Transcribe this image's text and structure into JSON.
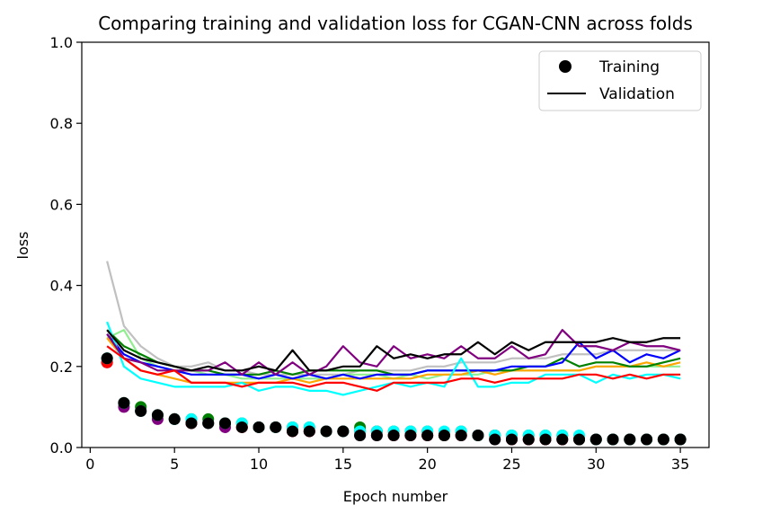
{
  "chart_data": {
    "type": "line",
    "title": "Comparing training and validation loss for CGAN-CNN across folds",
    "xlabel": "Epoch number",
    "ylabel": "loss",
    "xlim": [
      -0.5,
      36.7
    ],
    "ylim": [
      0,
      1.0
    ],
    "xticks": [
      "0",
      "5",
      "10",
      "15",
      "20",
      "25",
      "30",
      "35"
    ],
    "yticks": [
      "0.0",
      "0.2",
      "0.4",
      "0.6",
      "0.8",
      "1.0"
    ],
    "legend": {
      "placement": "top-right",
      "entries": [
        {
          "label": "Training",
          "marker": "dot",
          "color": "#000000"
        },
        {
          "label": "Validation",
          "marker": "line",
          "color": "#000000"
        }
      ]
    },
    "x": [
      1,
      2,
      3,
      4,
      5,
      6,
      7,
      8,
      9,
      10,
      11,
      12,
      13,
      14,
      15,
      16,
      17,
      18,
      19,
      20,
      21,
      22,
      23,
      24,
      25,
      26,
      27,
      28,
      29,
      30,
      31,
      32,
      33,
      34,
      35
    ],
    "validation_series": [
      {
        "color": "#c0c0c0",
        "values": [
          0.46,
          0.3,
          0.25,
          0.22,
          0.2,
          0.2,
          0.21,
          0.19,
          0.19,
          0.18,
          0.18,
          0.18,
          0.18,
          0.18,
          0.18,
          0.19,
          0.19,
          0.19,
          0.19,
          0.2,
          0.2,
          0.21,
          0.21,
          0.21,
          0.22,
          0.22,
          0.22,
          0.23,
          0.23,
          0.23,
          0.24,
          0.24,
          0.24,
          0.24,
          0.24
        ]
      },
      {
        "color": "#90ee90",
        "values": [
          0.27,
          0.29,
          0.22,
          0.2,
          0.19,
          0.19,
          0.18,
          0.18,
          0.17,
          0.17,
          0.17,
          0.17,
          0.17,
          0.17,
          0.18,
          0.18,
          0.18,
          0.17,
          0.18,
          0.17,
          0.18,
          0.18,
          0.18,
          0.19,
          0.19,
          0.19,
          0.19,
          0.19,
          0.19,
          0.2,
          0.2,
          0.2,
          0.2,
          0.2,
          0.2
        ]
      },
      {
        "color": "#ffa500",
        "values": [
          0.27,
          0.22,
          0.19,
          0.18,
          0.17,
          0.16,
          0.16,
          0.16,
          0.16,
          0.16,
          0.16,
          0.17,
          0.16,
          0.17,
          0.17,
          0.17,
          0.17,
          0.17,
          0.17,
          0.18,
          0.18,
          0.18,
          0.19,
          0.18,
          0.19,
          0.19,
          0.19,
          0.19,
          0.19,
          0.2,
          0.2,
          0.2,
          0.21,
          0.2,
          0.21
        ]
      },
      {
        "color": "#008000",
        "values": [
          0.29,
          0.25,
          0.23,
          0.21,
          0.2,
          0.19,
          0.19,
          0.18,
          0.18,
          0.18,
          0.19,
          0.18,
          0.19,
          0.19,
          0.19,
          0.19,
          0.19,
          0.18,
          0.18,
          0.19,
          0.19,
          0.19,
          0.19,
          0.19,
          0.19,
          0.2,
          0.2,
          0.22,
          0.2,
          0.21,
          0.21,
          0.2,
          0.2,
          0.21,
          0.22
        ]
      },
      {
        "color": "#0000ff",
        "values": [
          0.28,
          0.23,
          0.21,
          0.2,
          0.19,
          0.18,
          0.18,
          0.18,
          0.18,
          0.17,
          0.18,
          0.17,
          0.18,
          0.17,
          0.18,
          0.17,
          0.18,
          0.18,
          0.18,
          0.19,
          0.19,
          0.19,
          0.19,
          0.19,
          0.2,
          0.2,
          0.2,
          0.21,
          0.26,
          0.22,
          0.24,
          0.21,
          0.23,
          0.22,
          0.24
        ]
      },
      {
        "color": "#00ffff",
        "values": [
          0.31,
          0.2,
          0.17,
          0.16,
          0.15,
          0.15,
          0.15,
          0.15,
          0.16,
          0.14,
          0.15,
          0.15,
          0.14,
          0.14,
          0.13,
          0.14,
          0.15,
          0.16,
          0.15,
          0.16,
          0.15,
          0.22,
          0.15,
          0.15,
          0.16,
          0.16,
          0.18,
          0.18,
          0.18,
          0.16,
          0.18,
          0.17,
          0.18,
          0.18,
          0.17
        ]
      },
      {
        "color": "#800080",
        "values": [
          0.28,
          0.22,
          0.21,
          0.19,
          0.19,
          0.19,
          0.19,
          0.21,
          0.18,
          0.21,
          0.18,
          0.21,
          0.18,
          0.2,
          0.25,
          0.21,
          0.2,
          0.25,
          0.22,
          0.23,
          0.22,
          0.25,
          0.22,
          0.22,
          0.25,
          0.22,
          0.23,
          0.29,
          0.25,
          0.25,
          0.24,
          0.26,
          0.25,
          0.25,
          0.24
        ]
      },
      {
        "color": "#000000",
        "values": [
          0.29,
          0.24,
          0.22,
          0.21,
          0.2,
          0.19,
          0.2,
          0.19,
          0.19,
          0.2,
          0.19,
          0.24,
          0.19,
          0.19,
          0.2,
          0.2,
          0.25,
          0.22,
          0.23,
          0.22,
          0.23,
          0.23,
          0.26,
          0.23,
          0.26,
          0.24,
          0.26,
          0.26,
          0.26,
          0.26,
          0.27,
          0.26,
          0.26,
          0.27,
          0.27
        ]
      },
      {
        "color": "#ff0000",
        "values": [
          0.25,
          0.22,
          0.19,
          0.18,
          0.19,
          0.16,
          0.16,
          0.16,
          0.15,
          0.16,
          0.16,
          0.16,
          0.15,
          0.16,
          0.16,
          0.15,
          0.14,
          0.16,
          0.16,
          0.16,
          0.16,
          0.17,
          0.17,
          0.16,
          0.17,
          0.17,
          0.17,
          0.17,
          0.18,
          0.18,
          0.17,
          0.18,
          0.17,
          0.18,
          0.18
        ]
      }
    ],
    "training_series": [
      {
        "color": "#800080",
        "values": [
          0.21,
          0.1,
          0.09,
          0.07,
          0.07,
          0.06,
          0.06,
          0.05,
          0.05,
          0.05,
          0.05,
          0.04,
          0.04,
          0.04,
          0.04,
          0.03,
          0.03,
          0.03,
          0.03,
          0.03,
          0.03,
          0.03,
          0.03,
          0.02,
          0.02,
          0.02,
          0.02,
          0.02,
          0.02,
          0.02,
          0.02,
          0.02,
          0.02,
          0.02,
          0.02
        ]
      },
      {
        "color": "#ff0000",
        "values": [
          0.21,
          0.11,
          0.09,
          0.08,
          0.07,
          0.06,
          0.06,
          0.06,
          0.05,
          0.05,
          0.05,
          0.04,
          0.04,
          0.04,
          0.04,
          0.04,
          0.04,
          0.03,
          0.03,
          0.03,
          0.03,
          0.03,
          0.03,
          0.03,
          0.02,
          0.02,
          0.02,
          0.02,
          0.02,
          0.02,
          0.02,
          0.02,
          0.02,
          0.02,
          0.02
        ]
      },
      {
        "color": "#008000",
        "values": [
          0.22,
          0.11,
          0.1,
          0.08,
          0.07,
          0.07,
          0.07,
          0.06,
          0.06,
          0.05,
          0.05,
          0.05,
          0.05,
          0.04,
          0.04,
          0.05,
          0.04,
          0.04,
          0.04,
          0.04,
          0.03,
          0.04,
          0.03,
          0.03,
          0.03,
          0.03,
          0.03,
          0.03,
          0.02,
          0.02,
          0.02,
          0.02,
          0.02,
          0.02,
          0.02
        ]
      },
      {
        "color": "#00ffff",
        "values": [
          0.22,
          0.11,
          0.09,
          0.08,
          0.07,
          0.07,
          0.06,
          0.06,
          0.06,
          0.05,
          0.05,
          0.05,
          0.05,
          0.04,
          0.04,
          0.04,
          0.04,
          0.04,
          0.04,
          0.04,
          0.04,
          0.04,
          0.03,
          0.03,
          0.03,
          0.03,
          0.03,
          0.03,
          0.03,
          0.02,
          0.02,
          0.02,
          0.02,
          0.02,
          0.02
        ]
      },
      {
        "color": "#000000",
        "values": [
          0.22,
          0.11,
          0.09,
          0.08,
          0.07,
          0.06,
          0.06,
          0.06,
          0.05,
          0.05,
          0.05,
          0.04,
          0.04,
          0.04,
          0.04,
          0.03,
          0.03,
          0.03,
          0.03,
          0.03,
          0.03,
          0.03,
          0.03,
          0.02,
          0.02,
          0.02,
          0.02,
          0.02,
          0.02,
          0.02,
          0.02,
          0.02,
          0.02,
          0.02,
          0.02
        ]
      }
    ]
  }
}
